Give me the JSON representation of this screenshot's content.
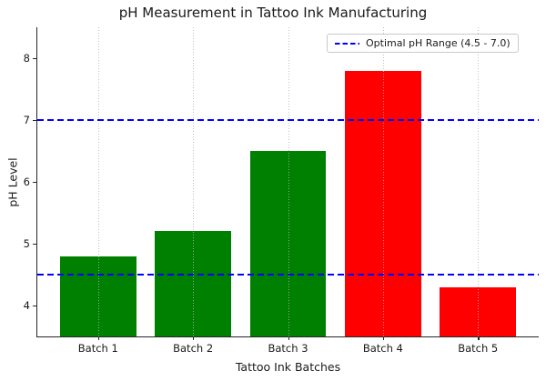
{
  "chart_data": {
    "type": "bar",
    "title": "pH Measurement in Tattoo Ink Manufacturing",
    "xlabel": "Tattoo Ink Batches",
    "ylabel": "pH Level",
    "categories": [
      "Batch 1",
      "Batch 2",
      "Batch 3",
      "Batch 4",
      "Batch 5"
    ],
    "values": [
      4.8,
      5.2,
      6.5,
      7.8,
      4.3
    ],
    "bar_colors": [
      "#008000",
      "#008000",
      "#008000",
      "#ff0000",
      "#ff0000"
    ],
    "ylim": [
      3.5,
      8.5
    ],
    "yticks": [
      4,
      5,
      6,
      7,
      8
    ],
    "grid": "vertical dotted gridlines at each category, drawn above bars",
    "legend_position": "upper right",
    "reference_lines": [
      {
        "name": "optimal-ph-lower-line",
        "value": 4.5,
        "color": "#0000ff",
        "style": "dashed"
      },
      {
        "name": "optimal-ph-upper-line",
        "value": 7.0,
        "color": "#0000ff",
        "style": "dashed"
      }
    ],
    "legend": {
      "entries": [
        {
          "label": "Optimal pH Range (4.5 - 7.0)",
          "line_color": "#0000ff",
          "line_style": "dashed"
        }
      ]
    }
  },
  "colors": {
    "in_range_bar": "#008000",
    "out_of_range_bar": "#ff0000",
    "optimal_line": "#0000ff",
    "grid": "#b4b4b4",
    "spine": "#262626",
    "text": "#1a1a1a",
    "legend_border": "#c9c9c9"
  }
}
